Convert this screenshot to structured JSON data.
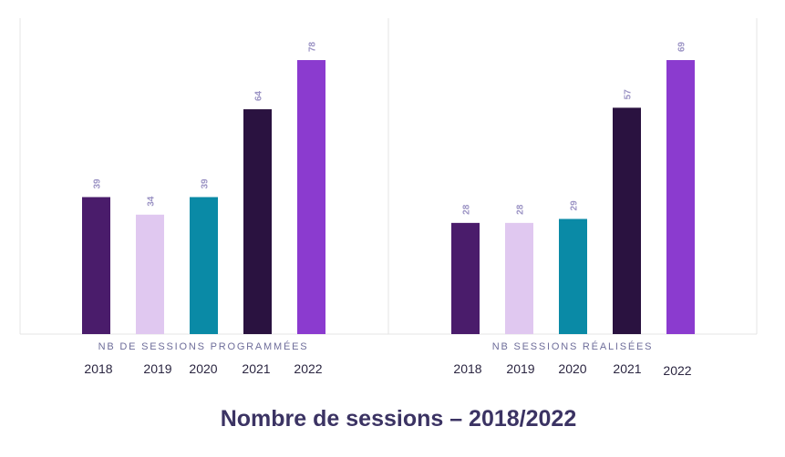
{
  "title": "Nombre de sessions – 2018/2022",
  "chart_data": [
    {
      "type": "bar",
      "xlabel": "NB DE SESSIONS PROGRAMMÉES",
      "categories": [
        "2018",
        "2019",
        "2020",
        "2021",
        "2022"
      ],
      "values": [
        39,
        34,
        39,
        64,
        78
      ],
      "colors": [
        "#4a1c6b",
        "#e0c8f0",
        "#0a8aa6",
        "#2a1240",
        "#8b3bcf"
      ],
      "ylim": [
        0,
        78
      ],
      "data_labels": true,
      "grid": false
    },
    {
      "type": "bar",
      "xlabel": "NB SESSIONS RÉALISÉES",
      "categories": [
        "2018",
        "2019",
        "2020",
        "2021",
        "2022"
      ],
      "values": [
        28,
        28,
        29,
        57,
        69
      ],
      "colors": [
        "#4a1c6b",
        "#e0c8f0",
        "#0a8aa6",
        "#2a1240",
        "#8b3bcf"
      ],
      "ylim": [
        0,
        69
      ],
      "data_labels": true,
      "grid": false
    }
  ]
}
